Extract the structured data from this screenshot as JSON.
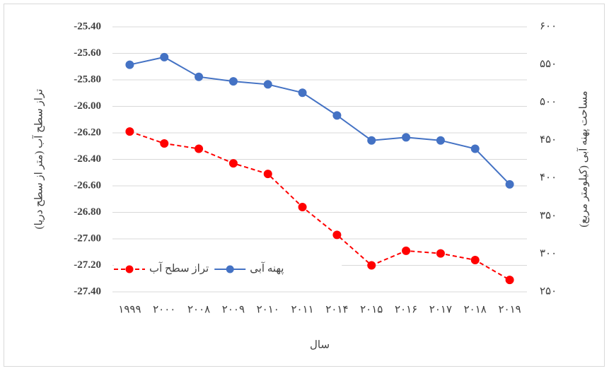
{
  "chart_data": {
    "type": "line",
    "y_label": "تراز سطح آب (متر از سطح دریا)",
    "y2_label": "مساحت پهنه آبی (کیلومتر مربع)",
    "x_label": "سال",
    "categories": [
      "۱۹۹۹",
      "۲۰۰۰",
      "۲۰۰۸",
      "۲۰۰۹",
      "۲۰۱۰",
      "۲۰۱۱",
      "۲۰۱۴",
      "۲۰۱۵",
      "۲۰۱۶",
      "۲۰۱۷",
      "۲۰۱۸",
      "۲۰۱۹"
    ],
    "series": [
      {
        "name": "تراز سطح آب",
        "color": "#ff0000",
        "dashed": true,
        "values": [
          -26.19,
          -26.28,
          -26.32,
          -26.43,
          -26.51,
          -26.76,
          -26.97,
          -27.2,
          -27.09,
          -27.11,
          -27.16,
          -27.31
        ]
      },
      {
        "name": "پهنه آبی",
        "color": "#4472c4",
        "axis": "y2",
        "values": [
          550,
          560,
          534,
          528,
          524,
          513,
          483,
          450,
          454,
          450,
          439,
          392
        ]
      }
    ],
    "ylim": [
      -27.4,
      -25.4
    ],
    "yticks": [
      {
        "value": -27.4,
        "label": "-27.40"
      },
      {
        "value": -27.2,
        "label": "-27.20"
      },
      {
        "value": -27.0,
        "label": "-27.00"
      },
      {
        "value": -26.8,
        "label": "-26.80"
      },
      {
        "value": -26.6,
        "label": "-26.60"
      },
      {
        "value": -26.4,
        "label": "-26.40"
      },
      {
        "value": -26.2,
        "label": "-26.20"
      },
      {
        "value": -26.0,
        "label": "-26.00"
      },
      {
        "value": -25.8,
        "label": "-25.80"
      },
      {
        "value": -25.6,
        "label": "-25.60"
      },
      {
        "value": -25.4,
        "label": "-25.40"
      }
    ],
    "y2lim": [
      250,
      600
    ],
    "y2ticks": [
      {
        "value": 250,
        "label": "۲۵۰"
      },
      {
        "value": 300,
        "label": "۳۰۰"
      },
      {
        "value": 350,
        "label": "۳۵۰"
      },
      {
        "value": 400,
        "label": "۴۰۰"
      },
      {
        "value": 450,
        "label": "۴۵۰"
      },
      {
        "value": 500,
        "label": "۵۰۰"
      },
      {
        "value": 550,
        "label": "۵۵۰"
      },
      {
        "value": 600,
        "label": "۶۰۰"
      }
    ],
    "grid": true,
    "legend": "bottom-left"
  }
}
